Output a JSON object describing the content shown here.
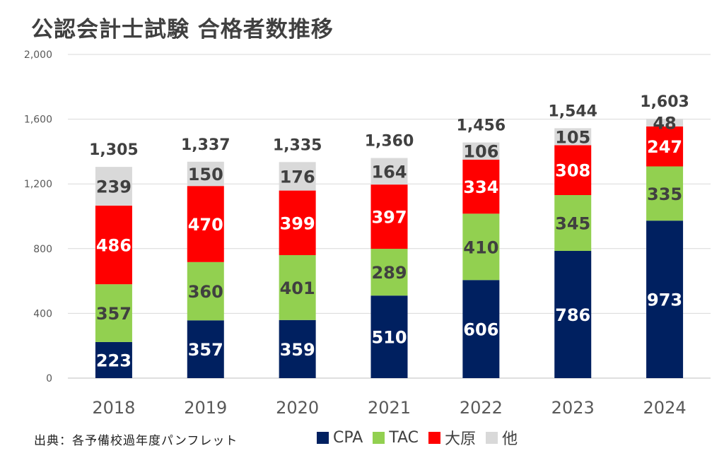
{
  "title": "公認会計士試験 合格者数推移",
  "source": "出典：各予備校過年度パンフレット",
  "chart_data": {
    "type": "bar",
    "stacked": true,
    "categories": [
      "2018",
      "2019",
      "2020",
      "2021",
      "2022",
      "2023",
      "2024"
    ],
    "series": [
      {
        "name": "CPA",
        "color": "#002060",
        "values": [
          223,
          357,
          359,
          510,
          606,
          786,
          973
        ]
      },
      {
        "name": "TAC",
        "color": "#92D050",
        "values": [
          357,
          360,
          401,
          289,
          410,
          345,
          335
        ]
      },
      {
        "name": "大原",
        "color": "#FF0000",
        "values": [
          486,
          470,
          399,
          397,
          334,
          308,
          247
        ]
      },
      {
        "name": "他",
        "color": "#D9D9D9",
        "values": [
          239,
          150,
          176,
          164,
          106,
          105,
          48
        ]
      }
    ],
    "totals": [
      "1,305",
      "1,337",
      "1,335",
      "1,360",
      "1,456",
      "1,544",
      "1,603"
    ],
    "yticks": [
      "0",
      "400",
      "800",
      "1,200",
      "1,600",
      "2,000"
    ],
    "ylim": [
      0,
      2000
    ],
    "grid": true,
    "legend_position": "bottom"
  }
}
